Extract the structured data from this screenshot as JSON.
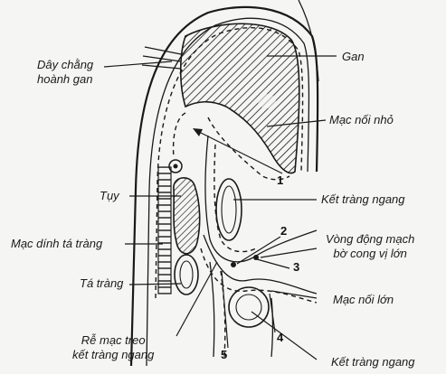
{
  "labels": {
    "day_chang": [
      "Dây chằng",
      "hoành gan"
    ],
    "gan": "Gan",
    "mac_noi_nho": "Mạc nối nhỏ",
    "tuy": "Tụy",
    "ket_trang_ngang_1": "Kết tràng ngang",
    "mac_dinh": "Mạc dính tá tràng",
    "vong_dong_mach": [
      "Vòng động mạch",
      "bờ cong vị lớn"
    ],
    "ta_trang": "Tá tràng",
    "mac_noi_lon": "Mạc nối lớn",
    "re_mac_treo": [
      "Rễ mạc treo",
      "kết tràng ngang"
    ],
    "ket_trang_ngang_2": "Kết tràng ngang"
  },
  "numbers": [
    "1",
    "2",
    "3",
    "4",
    "5"
  ],
  "colors": {
    "ink": "#1a1a1a",
    "paper": "#f5f5f3"
  }
}
